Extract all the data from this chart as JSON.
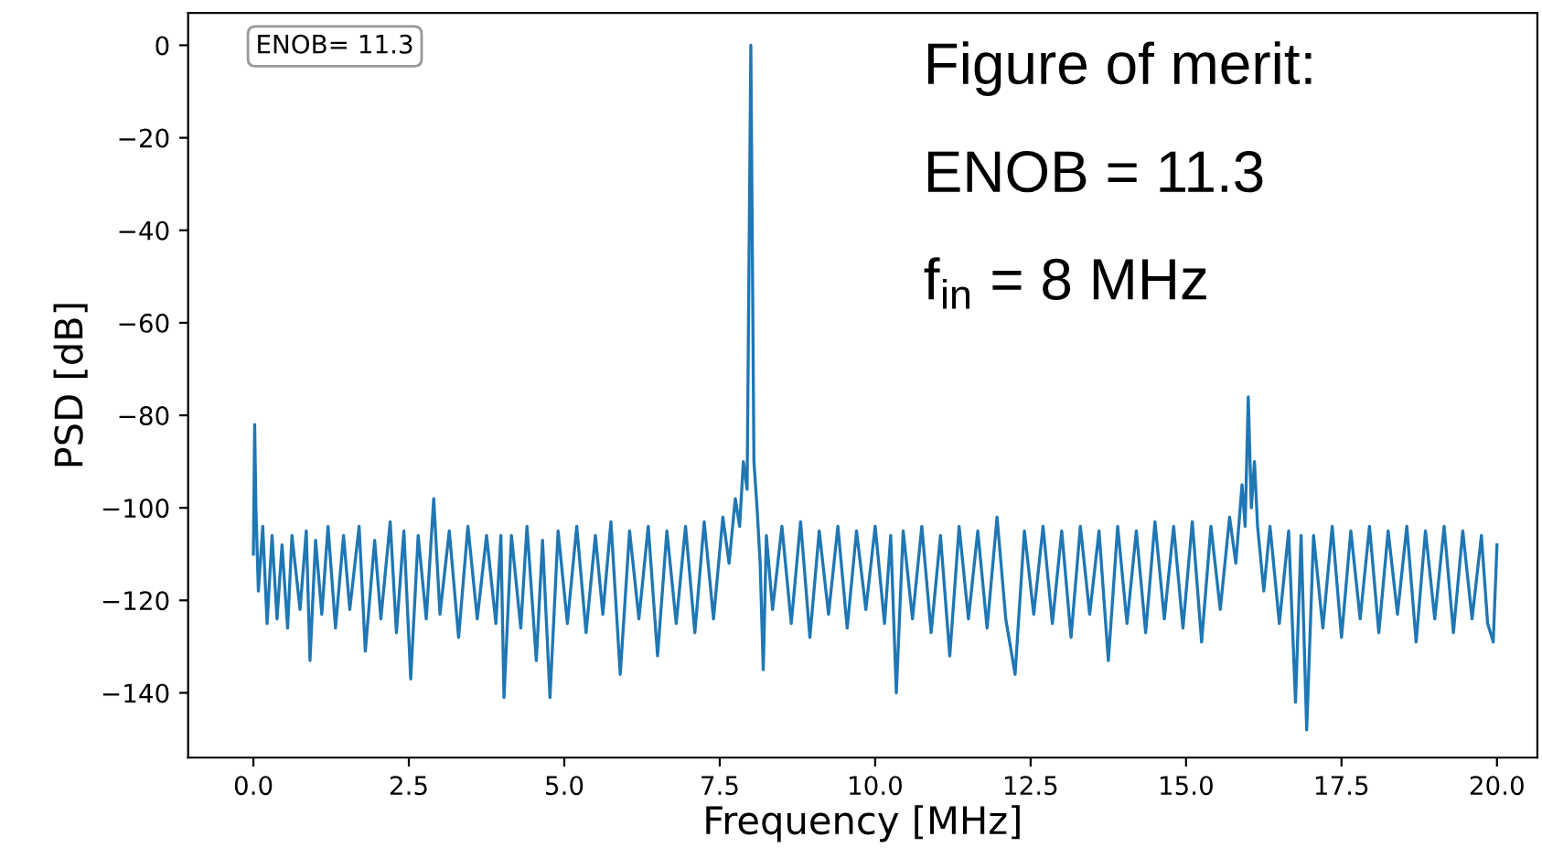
{
  "chart_data": {
    "type": "line",
    "xlabel": "Frequency [MHz]",
    "ylabel": "PSD [dB]",
    "annotations": [
      "ENOB= 11.3",
      "Figure of merit:",
      "ENOB = 11.3",
      "f$_{in}$ = 8 MHz"
    ],
    "xlim": [
      -1.05,
      20.65
    ],
    "ylim": [
      -154,
      7
    ],
    "xticks": [
      {
        "value": 0,
        "label": "0.0"
      },
      {
        "value": 2.5,
        "label": "2.5"
      },
      {
        "value": 5,
        "label": "5.0"
      },
      {
        "value": 7.5,
        "label": "7.5"
      },
      {
        "value": 10,
        "label": "10.0"
      },
      {
        "value": 12.5,
        "label": "12.5"
      },
      {
        "value": 15,
        "label": "15.0"
      },
      {
        "value": 17.5,
        "label": "17.5"
      },
      {
        "value": 20,
        "label": "20.0"
      }
    ],
    "yticks": [
      {
        "value": 0,
        "label": "0"
      },
      {
        "value": -20,
        "label": "−20"
      },
      {
        "value": -40,
        "label": "−40"
      },
      {
        "value": -60,
        "label": "−60"
      },
      {
        "value": -80,
        "label": "−80"
      },
      {
        "value": -100,
        "label": "−100"
      },
      {
        "value": -120,
        "label": "−120"
      },
      {
        "value": -140,
        "label": "−140"
      }
    ],
    "grid": false,
    "marker": "none",
    "line_style": "solid",
    "series": [
      {
        "color": "#1f77b4",
        "x": [
          0.0,
          0.02,
          0.04,
          0.08,
          0.15,
          0.22,
          0.3,
          0.38,
          0.46,
          0.55,
          0.62,
          0.75,
          0.85,
          0.91,
          1.0,
          1.1,
          1.2,
          1.32,
          1.45,
          1.55,
          1.7,
          1.8,
          1.95,
          2.05,
          2.2,
          2.3,
          2.42,
          2.53,
          2.65,
          2.78,
          2.9,
          3.0,
          3.15,
          3.3,
          3.45,
          3.6,
          3.75,
          3.9,
          3.98,
          4.03,
          4.15,
          4.3,
          4.4,
          4.55,
          4.65,
          4.77,
          4.9,
          5.05,
          5.2,
          5.35,
          5.5,
          5.62,
          5.75,
          5.9,
          6.05,
          6.2,
          6.35,
          6.5,
          6.65,
          6.8,
          6.95,
          7.1,
          7.25,
          7.4,
          7.55,
          7.65,
          7.75,
          7.82,
          7.88,
          7.94,
          8.0,
          8.05,
          8.1,
          8.15,
          8.2,
          8.25,
          8.35,
          8.5,
          8.65,
          8.8,
          8.95,
          9.1,
          9.25,
          9.4,
          9.55,
          9.7,
          9.85,
          10.0,
          10.15,
          10.25,
          10.34,
          10.45,
          10.6,
          10.75,
          10.9,
          11.05,
          11.2,
          11.35,
          11.5,
          11.65,
          11.8,
          11.96,
          12.1,
          12.25,
          12.4,
          12.55,
          12.7,
          12.85,
          13.0,
          13.15,
          13.3,
          13.45,
          13.6,
          13.75,
          13.9,
          14.05,
          14.2,
          14.35,
          14.5,
          14.65,
          14.8,
          14.95,
          15.1,
          15.25,
          15.4,
          15.55,
          15.7,
          15.8,
          15.9,
          15.95,
          16.0,
          16.05,
          16.1,
          16.15,
          16.25,
          16.35,
          16.5,
          16.65,
          16.76,
          16.85,
          16.94,
          17.05,
          17.2,
          17.35,
          17.5,
          17.65,
          17.8,
          17.95,
          18.1,
          18.25,
          18.4,
          18.55,
          18.7,
          18.85,
          19.0,
          19.15,
          19.3,
          19.45,
          19.6,
          19.75,
          19.85,
          19.94,
          20.0
        ],
        "values": [
          -110,
          -82,
          -100,
          -118,
          -104,
          -125,
          -106,
          -124,
          -108,
          -126,
          -106,
          -122,
          -105,
          -133,
          -107,
          -123,
          -104,
          -126,
          -106,
          -122,
          -104,
          -131,
          -107,
          -124,
          -103,
          -127,
          -105,
          -137,
          -106,
          -124,
          -98,
          -123,
          -105,
          -128,
          -104,
          -124,
          -106,
          -125,
          -106,
          -141,
          -106,
          -126,
          -104,
          -133,
          -107,
          -141,
          -105,
          -125,
          -104,
          -127,
          -106,
          -123,
          -103,
          -136,
          -105,
          -124,
          -104,
          -132,
          -105,
          -125,
          -104,
          -127,
          -103,
          -124,
          -102,
          -112,
          -98,
          -104,
          -90,
          -96,
          0,
          -90,
          -100,
          -112,
          -135,
          -106,
          -122,
          -104,
          -125,
          -103,
          -128,
          -105,
          -123,
          -104,
          -126,
          -105,
          -122,
          -104,
          -125,
          -106,
          -140,
          -105,
          -124,
          -104,
          -127,
          -106,
          -132,
          -104,
          -124,
          -105,
          -126,
          -102,
          -124,
          -136,
          -105,
          -123,
          -104,
          -125,
          -105,
          -128,
          -104,
          -123,
          -105,
          -133,
          -104,
          -125,
          -105,
          -127,
          -103,
          -124,
          -104,
          -126,
          -103,
          -129,
          -104,
          -122,
          -102,
          -112,
          -95,
          -104,
          -76,
          -100,
          -90,
          -104,
          -118,
          -104,
          -125,
          -105,
          -142,
          -106,
          -148,
          -106,
          -126,
          -104,
          -128,
          -105,
          -124,
          -104,
          -127,
          -105,
          -123,
          -104,
          -129,
          -105,
          -124,
          -104,
          -127,
          -105,
          -124,
          -106,
          -125,
          -129,
          -108
        ]
      }
    ]
  }
}
